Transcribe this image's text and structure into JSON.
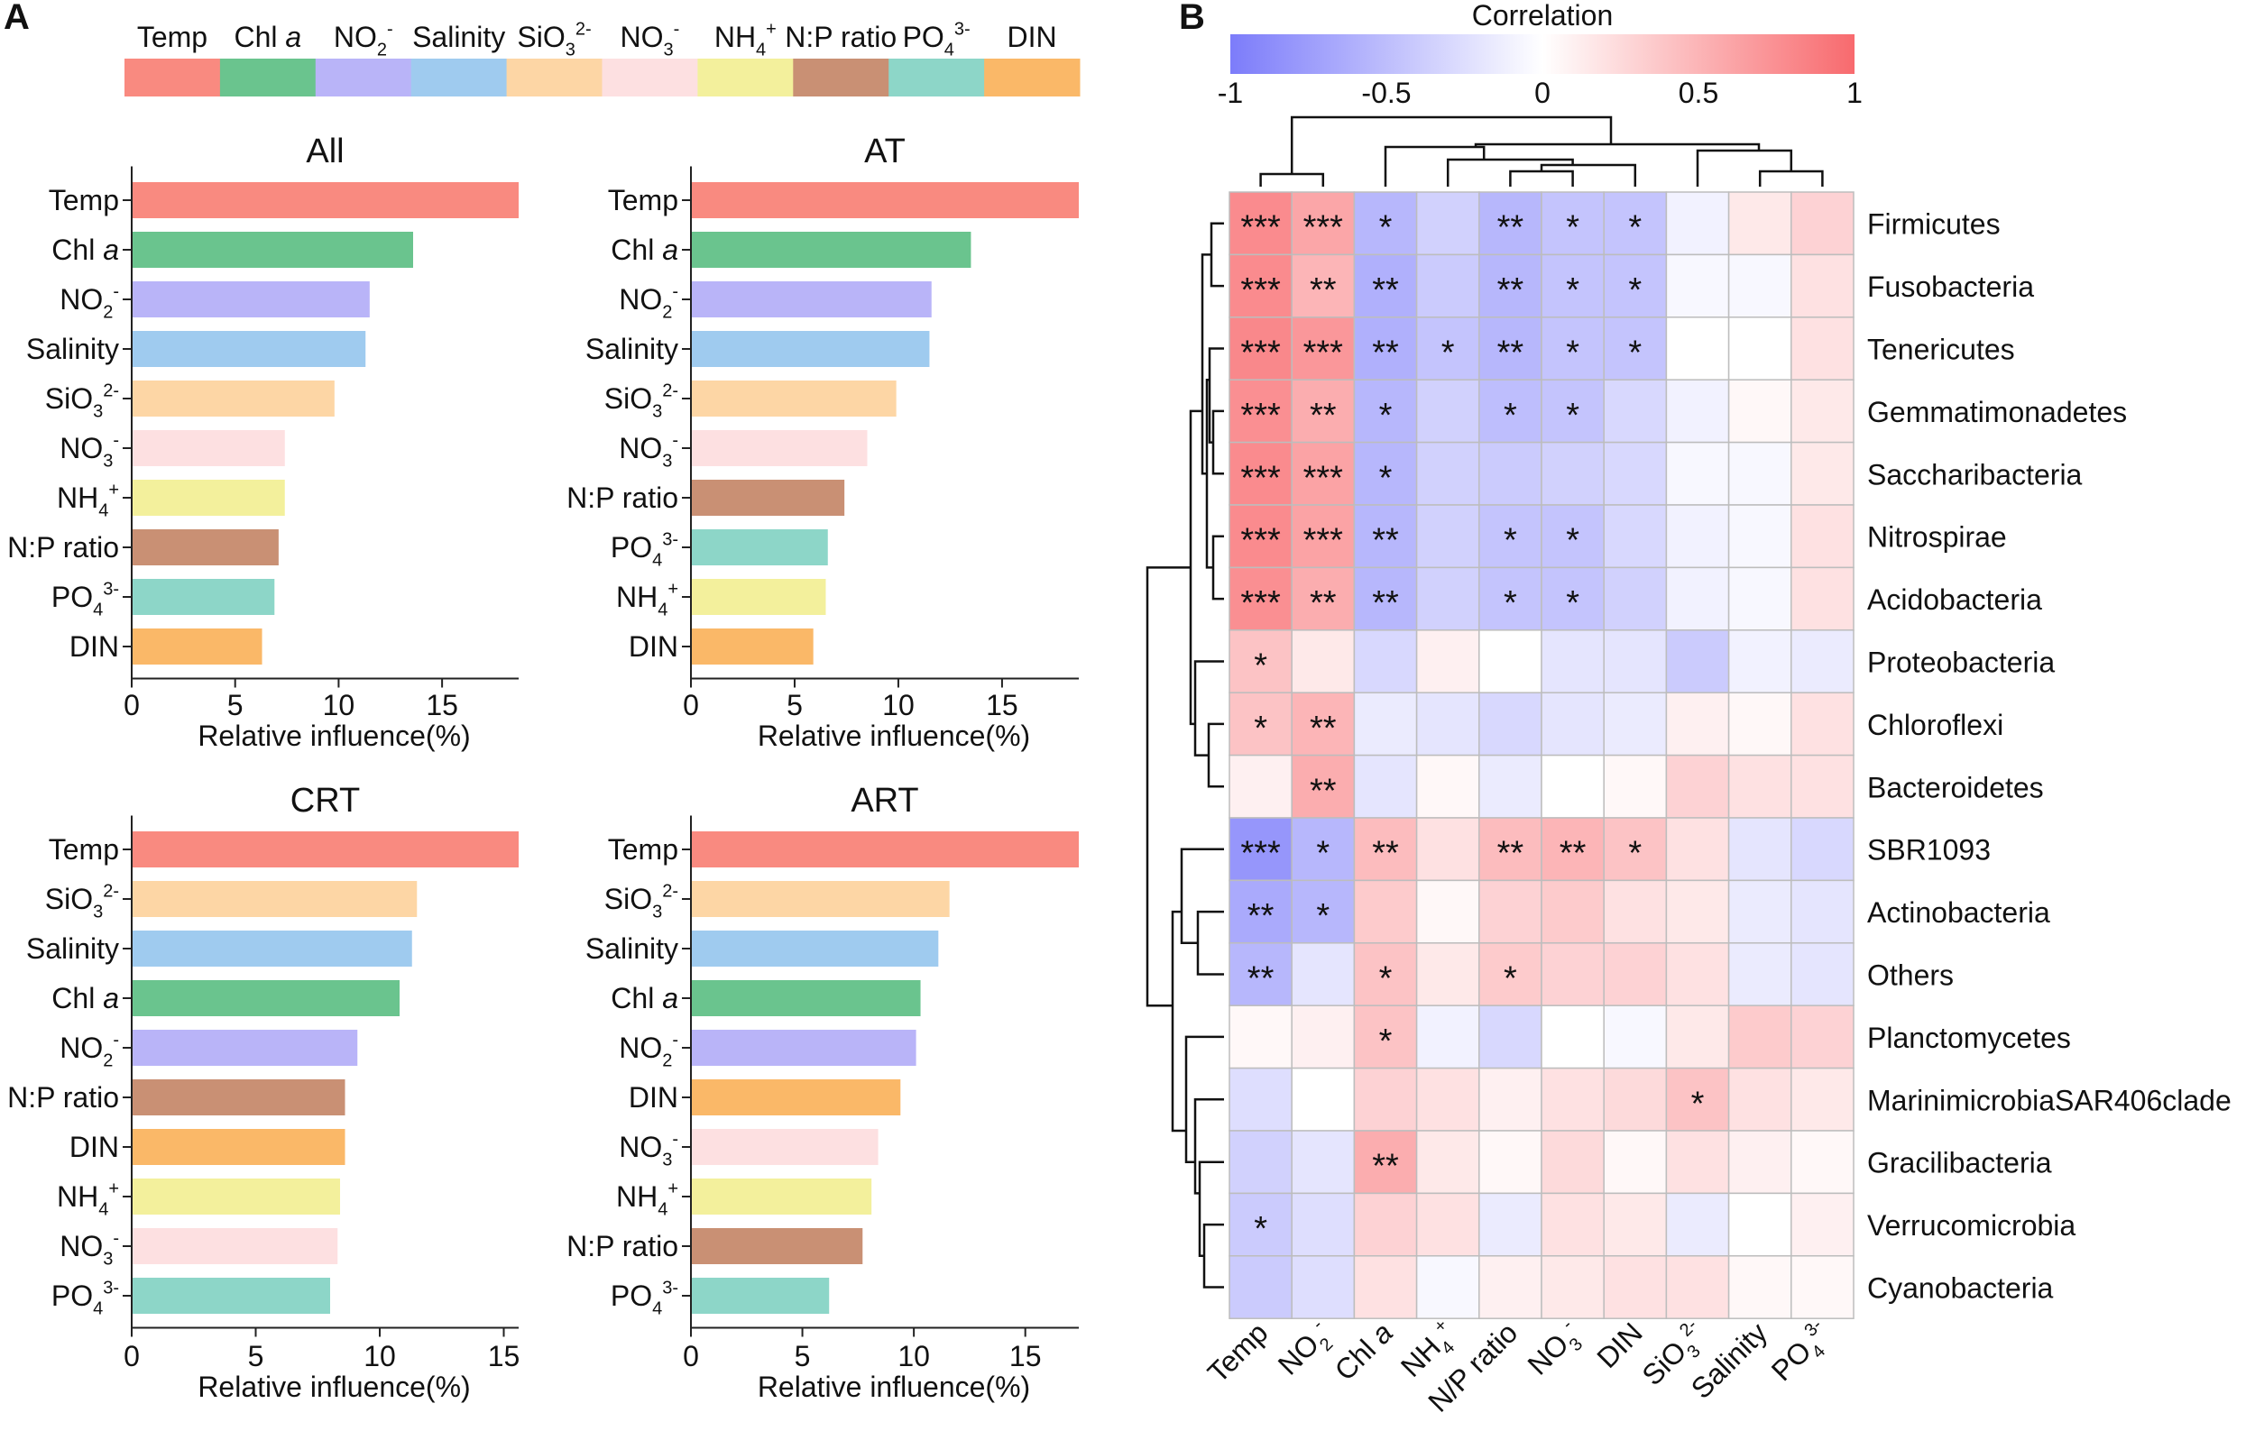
{
  "panels": {
    "a": "A",
    "b": "B"
  },
  "colors": {
    "Temp": "#f98a80",
    "Chl a": "#6ac48e",
    "NO2-": "#b9b4f8",
    "Salinity": "#9fcbef",
    "SiO3 2-": "#fdd6a5",
    "NO3-": "#fde0e1",
    "NH4+": "#f3f09c",
    "N:P ratio": "#c99074",
    "PO4 3-": "#8dd6c8",
    "DIN": "#fab868"
  },
  "legend": {
    "items": [
      "Temp",
      "Chl a",
      "NO2-",
      "Salinity",
      "SiO3 2-",
      "NO3-",
      "NH4+",
      "N:P ratio",
      "PO4 3-",
      "DIN"
    ]
  },
  "chart_data": [
    {
      "type": "bar",
      "orientation": "horizontal",
      "title": "All",
      "categories": [
        "Temp",
        "Chl a",
        "NO2-",
        "Salinity",
        "SiO3 2-",
        "NO3-",
        "NH4+",
        "N:P ratio",
        "PO4 3-",
        "DIN"
      ],
      "values": [
        18.7,
        13.6,
        11.5,
        11.3,
        9.8,
        7.4,
        7.4,
        7.1,
        6.9,
        6.3
      ],
      "xlabel": "Relative influence(%)",
      "xlim": [
        0,
        18.7
      ],
      "xticks": [
        "0",
        "5",
        "10",
        "15"
      ],
      "xtick_values": [
        0,
        5,
        10,
        15
      ]
    },
    {
      "type": "bar",
      "orientation": "horizontal",
      "title": "AT",
      "categories": [
        "Temp",
        "Chl a",
        "NO2-",
        "Salinity",
        "SiO3 2-",
        "NO3-",
        "N:P ratio",
        "PO4 3-",
        "NH4+",
        "DIN"
      ],
      "values": [
        18.7,
        13.5,
        11.6,
        11.5,
        9.9,
        8.5,
        7.4,
        6.6,
        6.5,
        5.9
      ],
      "xlabel": "Relative influence(%)",
      "xlim": [
        0,
        18.7
      ],
      "xticks": [
        "0",
        "5",
        "10",
        "15"
      ],
      "xtick_values": [
        0,
        5,
        10,
        15
      ]
    },
    {
      "type": "bar",
      "orientation": "horizontal",
      "title": "CRT",
      "categories": [
        "Temp",
        "SiO3 2-",
        "Salinity",
        "Chl a",
        "NO2-",
        "N:P ratio",
        "DIN",
        "NH4+",
        "NO3-",
        "PO4 3-"
      ],
      "values": [
        15.6,
        11.5,
        11.3,
        10.8,
        9.1,
        8.6,
        8.6,
        8.4,
        8.3,
        8.0
      ],
      "xlabel": "Relative influence(%)",
      "xlim": [
        0,
        15.6
      ],
      "xticks": [
        "0",
        "5",
        "10",
        "15"
      ],
      "xtick_values": [
        0,
        5,
        10,
        15
      ]
    },
    {
      "type": "bar",
      "orientation": "horizontal",
      "title": "ART",
      "categories": [
        "Temp",
        "SiO3 2-",
        "Salinity",
        "Chl a",
        "NO2-",
        "DIN",
        "NO3-",
        "NH4+",
        "N:P ratio",
        "PO4 3-"
      ],
      "values": [
        17.4,
        11.6,
        11.1,
        10.3,
        10.1,
        9.4,
        8.4,
        8.1,
        7.7,
        6.2
      ],
      "xlabel": "Relative influence(%)",
      "xlim": [
        0,
        17.4
      ],
      "xticks": [
        "0",
        "5",
        "10",
        "15"
      ],
      "xtick_values": [
        0,
        5,
        10,
        15
      ]
    },
    {
      "type": "heatmap",
      "title": "Correlation",
      "colorbar": {
        "range": [
          -1,
          1
        ],
        "ticks": [
          "-1",
          "-0.5",
          "0",
          "0.5",
          "1"
        ],
        "tick_values": [
          -1,
          -0.5,
          0,
          0.5,
          1
        ],
        "low_color": "#7c7cfa",
        "mid_color": "#ffffff",
        "high_color": "#f86a6e"
      },
      "columns": [
        "Temp",
        "NO2-",
        "Chl a",
        "NH4+",
        "N/P ratio",
        "NO3-",
        "DIN",
        "SiO3 2-",
        "Salinity",
        "PO4 3-"
      ],
      "rows": [
        "Firmicutes",
        "Fusobacteria",
        "Tenericutes",
        "Gemmatimonadetes",
        "Saccharibacteria",
        "Nitrospirae",
        "Acidobacteria",
        "Proteobacteria",
        "Chloroflexi",
        "Bacteroidetes",
        "SBR1093",
        "Actinobacteria",
        "Others",
        "Planctomycetes",
        "MarinimicrobiaSAR406clade",
        "Gracilibacteria",
        "Verrucomicrobia",
        "Cyanobacteria"
      ],
      "values": [
        [
          0.78,
          0.6,
          -0.55,
          -0.35,
          -0.55,
          -0.45,
          -0.45,
          -0.1,
          0.15,
          0.3
        ],
        [
          0.78,
          0.5,
          -0.6,
          -0.4,
          -0.55,
          -0.45,
          -0.45,
          -0.05,
          -0.05,
          0.2
        ],
        [
          0.8,
          0.7,
          -0.6,
          -0.45,
          -0.55,
          -0.45,
          -0.45,
          0.0,
          0.0,
          0.2
        ],
        [
          0.75,
          0.55,
          -0.55,
          -0.35,
          -0.5,
          -0.45,
          -0.3,
          -0.1,
          0.05,
          0.15
        ],
        [
          0.78,
          0.62,
          -0.55,
          -0.35,
          -0.4,
          -0.35,
          -0.3,
          -0.05,
          -0.05,
          0.15
        ],
        [
          0.78,
          0.62,
          -0.55,
          -0.35,
          -0.45,
          -0.45,
          -0.3,
          -0.1,
          -0.05,
          0.2
        ],
        [
          0.75,
          0.55,
          -0.55,
          -0.35,
          -0.45,
          -0.45,
          -0.35,
          -0.1,
          -0.05,
          0.2
        ],
        [
          0.4,
          0.15,
          -0.3,
          0.1,
          0.0,
          -0.2,
          -0.2,
          -0.4,
          -0.1,
          -0.15
        ],
        [
          0.4,
          0.5,
          -0.15,
          -0.2,
          -0.3,
          -0.2,
          -0.15,
          0.1,
          0.05,
          0.2
        ],
        [
          0.1,
          0.55,
          -0.2,
          0.05,
          -0.15,
          0.0,
          0.05,
          0.3,
          0.2,
          0.2
        ],
        [
          -0.8,
          -0.55,
          0.45,
          0.2,
          0.45,
          0.5,
          0.4,
          0.2,
          -0.2,
          -0.3
        ],
        [
          -0.65,
          -0.55,
          0.35,
          0.05,
          0.3,
          0.35,
          0.2,
          0.15,
          -0.15,
          -0.2
        ],
        [
          -0.55,
          -0.2,
          0.4,
          0.15,
          0.35,
          0.3,
          0.3,
          0.2,
          -0.15,
          -0.2
        ],
        [
          0.05,
          0.1,
          0.4,
          -0.1,
          -0.3,
          0.0,
          -0.05,
          0.15,
          0.35,
          0.3
        ],
        [
          -0.25,
          0.0,
          0.3,
          0.2,
          0.1,
          0.2,
          0.25,
          0.4,
          0.2,
          0.15
        ],
        [
          -0.35,
          -0.2,
          0.55,
          0.15,
          0.05,
          0.25,
          0.05,
          0.2,
          0.1,
          0.05
        ],
        [
          -0.4,
          -0.25,
          0.3,
          0.2,
          -0.15,
          0.2,
          0.15,
          -0.15,
          0.0,
          0.1
        ],
        [
          -0.4,
          -0.25,
          0.2,
          -0.05,
          0.1,
          0.15,
          0.2,
          0.2,
          0.05,
          0.05
        ]
      ],
      "significance": [
        [
          "***",
          "***",
          "*",
          "",
          "**",
          "*",
          "*",
          "",
          "",
          ""
        ],
        [
          "***",
          "**",
          "**",
          "",
          "**",
          "*",
          "*",
          "",
          "",
          ""
        ],
        [
          "***",
          "***",
          "**",
          "*",
          "**",
          "*",
          "*",
          "",
          "",
          ""
        ],
        [
          "***",
          "**",
          "*",
          "",
          "*",
          "*",
          "",
          "",
          "",
          ""
        ],
        [
          "***",
          "***",
          "*",
          "",
          "",
          "",
          "",
          "",
          "",
          ""
        ],
        [
          "***",
          "***",
          "**",
          "",
          "*",
          "*",
          "",
          "",
          "",
          ""
        ],
        [
          "***",
          "**",
          "**",
          "",
          "*",
          "*",
          "",
          "",
          "",
          ""
        ],
        [
          "*",
          "",
          "",
          "",
          "",
          "",
          "",
          "",
          "",
          ""
        ],
        [
          "*",
          "**",
          "",
          "",
          "",
          "",
          "",
          "",
          "",
          ""
        ],
        [
          "",
          "**",
          "",
          "",
          "",
          "",
          "",
          "",
          "",
          ""
        ],
        [
          "***",
          "*",
          "**",
          "",
          "**",
          "**",
          "*",
          "",
          "",
          ""
        ],
        [
          "**",
          "*",
          "",
          "",
          "",
          "",
          "",
          "",
          "",
          ""
        ],
        [
          "**",
          "",
          "*",
          "",
          "*",
          "",
          "",
          "",
          "",
          ""
        ],
        [
          "",
          "",
          "*",
          "",
          "",
          "",
          "",
          "",
          "",
          ""
        ],
        [
          "",
          "",
          "",
          "",
          "",
          "",
          "",
          "*",
          "",
          ""
        ],
        [
          "",
          "",
          "**",
          "",
          "",
          "",
          "",
          "",
          "",
          ""
        ],
        [
          "*",
          "",
          "",
          "",
          "",
          "",
          "",
          "",
          "",
          ""
        ],
        [
          "",
          "",
          "",
          "",
          "",
          "",
          "",
          "",
          "",
          ""
        ]
      ]
    }
  ]
}
